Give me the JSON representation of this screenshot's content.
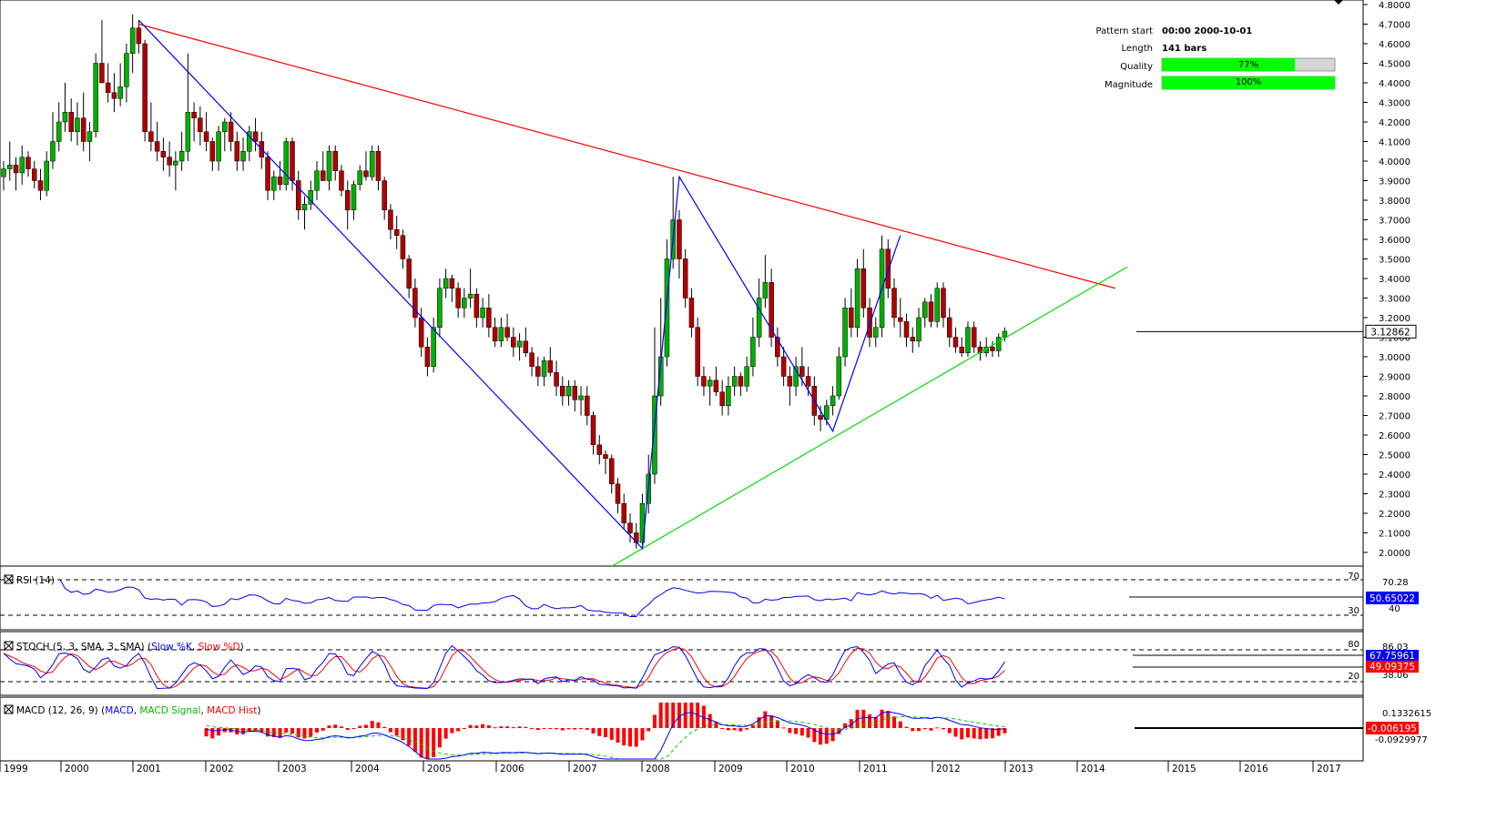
{
  "pattern_info": {
    "start_label": "Pattern start",
    "start_value": "00:00 2000-10-01",
    "length_label": "Length",
    "length_value": "141 bars",
    "quality_label": "Quality",
    "quality_text": "77%",
    "quality_value": 0.77,
    "magnitude_label": "Magnitude",
    "magnitude_text": "100%",
    "magnitude_value": 1.0,
    "bar_color": "#00ff00"
  },
  "chart_data": {
    "type": "candlestick",
    "price_axis": {
      "ticks": [
        "4.8000",
        "4.7000",
        "4.6000",
        "4.5000",
        "4.4000",
        "4.3000",
        "4.2000",
        "4.1000",
        "4.0000",
        "3.9000",
        "3.8000",
        "3.7000",
        "3.6000",
        "3.5000",
        "3.4000",
        "3.3000",
        "3.2000",
        "3.1000",
        "3.0000",
        "2.9000",
        "2.8000",
        "2.7000",
        "2.6000",
        "2.5000",
        "2.4000",
        "2.3000",
        "2.2000",
        "2.1000",
        "2.0000"
      ],
      "range": [
        1.93,
        4.81
      ],
      "current_price": "3.12862",
      "current_value": 3.12862
    },
    "time_axis": {
      "labels": [
        "1999",
        "2000",
        "2001",
        "2002",
        "2003",
        "2004",
        "2005",
        "2006",
        "2007",
        "2008",
        "2009",
        "2010",
        "2011",
        "2012",
        "2013",
        "2014",
        "2015",
        "2016",
        "2017"
      ]
    },
    "candles": [
      [
        3.92,
        4.0,
        3.85,
        3.96
      ],
      [
        3.96,
        4.1,
        3.9,
        3.98
      ],
      [
        3.98,
        4.02,
        3.85,
        3.94
      ],
      [
        3.94,
        4.08,
        3.88,
        4.02
      ],
      [
        4.02,
        4.05,
        3.92,
        3.96
      ],
      [
        3.96,
        4.0,
        3.86,
        3.9
      ],
      [
        3.9,
        3.96,
        3.8,
        3.85
      ],
      [
        3.85,
        4.05,
        3.82,
        4.0
      ],
      [
        4.0,
        4.25,
        3.96,
        4.1
      ],
      [
        4.1,
        4.3,
        4.05,
        4.2
      ],
      [
        4.2,
        4.4,
        4.15,
        4.25
      ],
      [
        4.25,
        4.32,
        4.1,
        4.15
      ],
      [
        4.15,
        4.3,
        4.08,
        4.22
      ],
      [
        4.22,
        4.35,
        4.05,
        4.1
      ],
      [
        4.1,
        4.2,
        4.0,
        4.15
      ],
      [
        4.15,
        4.55,
        4.12,
        4.5
      ],
      [
        4.5,
        4.72,
        4.4,
        4.4
      ],
      [
        4.4,
        4.5,
        4.3,
        4.35
      ],
      [
        4.35,
        4.45,
        4.25,
        4.32
      ],
      [
        4.32,
        4.5,
        4.28,
        4.38
      ],
      [
        4.38,
        4.6,
        4.3,
        4.55
      ],
      [
        4.55,
        4.75,
        4.45,
        4.68
      ],
      [
        4.68,
        4.72,
        4.55,
        4.6
      ],
      [
        4.6,
        4.62,
        4.1,
        4.15
      ],
      [
        4.15,
        4.3,
        4.05,
        4.1
      ],
      [
        4.1,
        4.2,
        4.0,
        4.05
      ],
      [
        4.05,
        4.12,
        3.95,
        4.02
      ],
      [
        4.02,
        4.1,
        3.92,
        3.98
      ],
      [
        3.98,
        4.05,
        3.85,
        4.0
      ],
      [
        4.0,
        4.15,
        3.95,
        4.05
      ],
      [
        4.05,
        4.55,
        4.0,
        4.25
      ],
      [
        4.25,
        4.3,
        4.1,
        4.22
      ],
      [
        4.22,
        4.28,
        4.08,
        4.15
      ],
      [
        4.15,
        4.25,
        4.05,
        4.1
      ],
      [
        4.1,
        4.12,
        3.95,
        4.0
      ],
      [
        4.0,
        4.18,
        3.95,
        4.15
      ],
      [
        4.15,
        4.22,
        4.05,
        4.2
      ],
      [
        4.2,
        4.25,
        4.05,
        4.1
      ],
      [
        4.1,
        4.15,
        3.95,
        4.0
      ],
      [
        4.0,
        4.12,
        3.95,
        4.05
      ],
      [
        4.05,
        4.18,
        4.0,
        4.15
      ],
      [
        4.15,
        4.22,
        4.05,
        4.1
      ],
      [
        4.1,
        4.15,
        3.96,
        4.02
      ],
      [
        4.02,
        4.05,
        3.8,
        3.85
      ],
      [
        3.85,
        3.95,
        3.8,
        3.92
      ],
      [
        3.92,
        4.0,
        3.85,
        3.88
      ],
      [
        3.88,
        4.12,
        3.85,
        4.1
      ],
      [
        4.1,
        4.12,
        3.85,
        3.9
      ],
      [
        3.9,
        3.95,
        3.7,
        3.75
      ],
      [
        3.75,
        3.82,
        3.65,
        3.78
      ],
      [
        3.78,
        3.9,
        3.75,
        3.85
      ],
      [
        3.85,
        4.0,
        3.8,
        3.95
      ],
      [
        3.95,
        4.05,
        3.9,
        3.9
      ],
      [
        3.9,
        4.08,
        3.85,
        4.05
      ],
      [
        4.05,
        4.08,
        3.9,
        3.95
      ],
      [
        3.95,
        3.98,
        3.82,
        3.85
      ],
      [
        3.85,
        3.9,
        3.65,
        3.75
      ],
      [
        3.75,
        3.9,
        3.7,
        3.88
      ],
      [
        3.88,
        3.98,
        3.85,
        3.95
      ],
      [
        3.95,
        4.05,
        3.9,
        3.92
      ],
      [
        3.92,
        4.08,
        3.9,
        4.05
      ],
      [
        4.05,
        4.08,
        3.85,
        3.9
      ],
      [
        3.9,
        3.92,
        3.7,
        3.75
      ],
      [
        3.75,
        3.78,
        3.6,
        3.65
      ],
      [
        3.65,
        3.72,
        3.55,
        3.62
      ],
      [
        3.62,
        3.65,
        3.45,
        3.5
      ],
      [
        3.5,
        3.52,
        3.3,
        3.35
      ],
      [
        3.35,
        3.4,
        3.15,
        3.2
      ],
      [
        3.2,
        3.25,
        3.0,
        3.05
      ],
      [
        3.05,
        3.1,
        2.9,
        2.95
      ],
      [
        2.95,
        3.2,
        2.92,
        3.15
      ],
      [
        3.15,
        3.4,
        3.1,
        3.35
      ],
      [
        3.35,
        3.45,
        3.3,
        3.4
      ],
      [
        3.4,
        3.42,
        3.28,
        3.35
      ],
      [
        3.35,
        3.38,
        3.2,
        3.25
      ],
      [
        3.25,
        3.35,
        3.2,
        3.3
      ],
      [
        3.3,
        3.45,
        3.25,
        3.32
      ],
      [
        3.32,
        3.35,
        3.15,
        3.2
      ],
      [
        3.2,
        3.3,
        3.15,
        3.25
      ],
      [
        3.25,
        3.32,
        3.1,
        3.15
      ],
      [
        3.15,
        3.2,
        3.05,
        3.08
      ],
      [
        3.08,
        3.2,
        3.05,
        3.15
      ],
      [
        3.15,
        3.22,
        3.08,
        3.1
      ],
      [
        3.1,
        3.15,
        3.0,
        3.05
      ],
      [
        3.05,
        3.12,
        2.98,
        3.08
      ],
      [
        3.08,
        3.15,
        3.0,
        3.02
      ],
      [
        3.02,
        3.05,
        2.9,
        2.95
      ],
      [
        2.95,
        3.0,
        2.85,
        2.9
      ],
      [
        2.9,
        3.0,
        2.85,
        2.98
      ],
      [
        2.98,
        3.05,
        2.9,
        2.92
      ],
      [
        2.92,
        2.98,
        2.8,
        2.85
      ],
      [
        2.85,
        2.9,
        2.75,
        2.8
      ],
      [
        2.8,
        2.88,
        2.75,
        2.85
      ],
      [
        2.85,
        2.88,
        2.72,
        2.78
      ],
      [
        2.78,
        2.85,
        2.7,
        2.8
      ],
      [
        2.8,
        2.85,
        2.65,
        2.7
      ],
      [
        2.7,
        2.72,
        2.5,
        2.55
      ],
      [
        2.55,
        2.6,
        2.45,
        2.5
      ],
      [
        2.5,
        2.52,
        2.4,
        2.48
      ],
      [
        2.48,
        2.5,
        2.3,
        2.35
      ],
      [
        2.35,
        2.38,
        2.2,
        2.25
      ],
      [
        2.25,
        2.3,
        2.12,
        2.15
      ],
      [
        2.15,
        2.2,
        2.05,
        2.1
      ],
      [
        2.1,
        2.15,
        2.02,
        2.05
      ],
      [
        2.05,
        2.3,
        2.02,
        2.25
      ],
      [
        2.25,
        2.5,
        2.2,
        2.4
      ],
      [
        2.4,
        3.15,
        2.35,
        2.8
      ],
      [
        2.8,
        3.3,
        2.75,
        3.0
      ],
      [
        3.0,
        3.6,
        2.95,
        3.5
      ],
      [
        3.5,
        3.92,
        3.45,
        3.7
      ],
      [
        3.7,
        3.75,
        3.4,
        3.5
      ],
      [
        3.5,
        3.55,
        3.25,
        3.3
      ],
      [
        3.3,
        3.35,
        3.1,
        3.15
      ],
      [
        3.15,
        3.2,
        2.85,
        2.9
      ],
      [
        2.9,
        2.95,
        2.8,
        2.85
      ],
      [
        2.85,
        2.9,
        2.75,
        2.88
      ],
      [
        2.88,
        2.95,
        2.8,
        2.82
      ],
      [
        2.82,
        2.88,
        2.7,
        2.75
      ],
      [
        2.75,
        2.9,
        2.7,
        2.85
      ],
      [
        2.85,
        2.95,
        2.8,
        2.9
      ],
      [
        2.9,
        2.92,
        2.8,
        2.85
      ],
      [
        2.85,
        3.0,
        2.82,
        2.95
      ],
      [
        2.95,
        3.2,
        2.9,
        3.1
      ],
      [
        3.1,
        3.4,
        3.05,
        3.3
      ],
      [
        3.3,
        3.52,
        3.25,
        3.38
      ],
      [
        3.38,
        3.45,
        3.05,
        3.1
      ],
      [
        3.1,
        3.15,
        2.95,
        3.0
      ],
      [
        3.0,
        3.05,
        2.85,
        2.9
      ],
      [
        2.9,
        2.95,
        2.75,
        2.85
      ],
      [
        2.85,
        3.0,
        2.8,
        2.95
      ],
      [
        2.95,
        3.05,
        2.85,
        2.9
      ],
      [
        2.9,
        2.95,
        2.8,
        2.85
      ],
      [
        2.85,
        2.9,
        2.65,
        2.7
      ],
      [
        2.7,
        2.75,
        2.62,
        2.68
      ],
      [
        2.68,
        2.78,
        2.65,
        2.75
      ],
      [
        2.75,
        2.85,
        2.7,
        2.8
      ],
      [
        2.8,
        3.05,
        2.78,
        3.0
      ],
      [
        3.0,
        3.3,
        2.95,
        3.25
      ],
      [
        3.25,
        3.35,
        3.1,
        3.15
      ],
      [
        3.15,
        3.5,
        3.1,
        3.45
      ],
      [
        3.45,
        3.55,
        3.2,
        3.25
      ],
      [
        3.25,
        3.3,
        3.05,
        3.1
      ],
      [
        3.1,
        3.2,
        3.05,
        3.15
      ],
      [
        3.15,
        3.62,
        3.1,
        3.55
      ],
      [
        3.55,
        3.6,
        3.3,
        3.35
      ],
      [
        3.35,
        3.4,
        3.15,
        3.2
      ],
      [
        3.2,
        3.3,
        3.1,
        3.18
      ],
      [
        3.18,
        3.22,
        3.05,
        3.1
      ],
      [
        3.1,
        3.15,
        3.02,
        3.08
      ],
      [
        3.08,
        3.25,
        3.05,
        3.2
      ],
      [
        3.2,
        3.3,
        3.15,
        3.28
      ],
      [
        3.28,
        3.32,
        3.15,
        3.18
      ],
      [
        3.18,
        3.38,
        3.15,
        3.35
      ],
      [
        3.35,
        3.38,
        3.15,
        3.2
      ],
      [
        3.2,
        3.25,
        3.05,
        3.1
      ],
      [
        3.1,
        3.15,
        3.02,
        3.05
      ],
      [
        3.05,
        3.1,
        3.0,
        3.02
      ],
      [
        3.02,
        3.18,
        3.0,
        3.15
      ],
      [
        3.15,
        3.18,
        3.02,
        3.05
      ],
      [
        3.05,
        3.08,
        2.98,
        3.02
      ],
      [
        3.02,
        3.1,
        3.0,
        3.05
      ],
      [
        3.05,
        3.08,
        3.0,
        3.03
      ],
      [
        3.03,
        3.12,
        3.0,
        3.1
      ],
      [
        3.1,
        3.15,
        3.08,
        3.13
      ]
    ],
    "trend_lines": [
      {
        "name": "resistance",
        "color": "#ff0000",
        "from": [
          22,
          4.7
        ],
        "to": [
          181,
          3.35
        ]
      },
      {
        "name": "support",
        "color": "#00dd00",
        "from": [
          104,
          2.02
        ],
        "to": [
          183,
          3.46
        ]
      }
    ],
    "zigzag": [
      [
        22,
        4.72
      ],
      [
        104,
        2.02
      ],
      [
        110,
        3.92
      ],
      [
        135,
        2.62
      ],
      [
        146,
        3.62
      ]
    ]
  },
  "rsi": {
    "label": "RSI (14)",
    "level_high": "70",
    "level_low": "30",
    "right_high": "70.28",
    "right_low": "40",
    "current_value": "50.65022"
  },
  "stoch": {
    "label_prefix": "STOCH (5, 3, SMA, 3, SMA)",
    "label_k": "Slow %K",
    "label_d": "Slow %D",
    "level_high": "80",
    "level_low": "20",
    "right_top": "86.03",
    "right_bottom": "38.06",
    "value_k": "67.75961",
    "value_d": "49.09375"
  },
  "macd": {
    "label_prefix": "MACD (12, 26, 9)",
    "label_main": "MACD",
    "label_signal": "MACD Signal",
    "label_hist": "MACD Hist",
    "right_top": "0.1332615",
    "right_bottom": "-0.0929977",
    "current_value": "-0.006195"
  },
  "colors": {
    "bull": "#00b000",
    "bear": "#b00000",
    "blue": "#0000ff",
    "red": "#ff0000"
  }
}
